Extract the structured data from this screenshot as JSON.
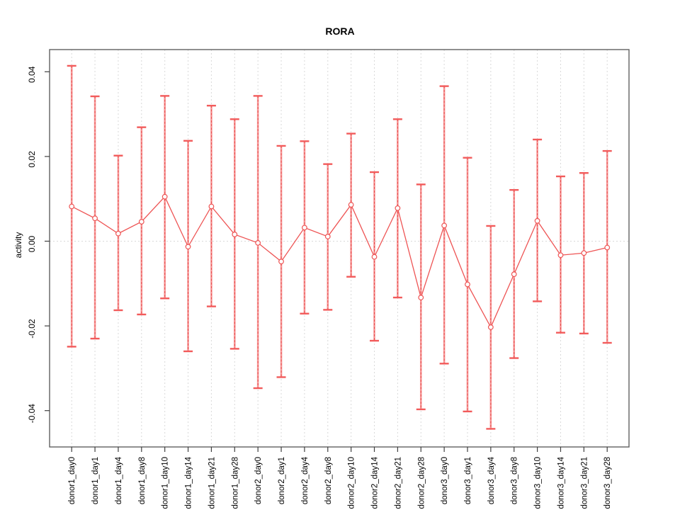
{
  "title": "RORA",
  "ylabel": "activity",
  "colors": {
    "point": "#ee5454",
    "line": "#ee5454",
    "whisker_light": "#f79a9a",
    "whisker_core": "#e85050",
    "cap": "#f25b5b",
    "grid": "#d9d9d9",
    "frame": "#606060",
    "tick": "#404040",
    "text": "#000000"
  },
  "chart_data": {
    "type": "line",
    "subtype": "points-with-error-bars",
    "title": "RORA",
    "xlabel": "",
    "ylabel": "activity",
    "legend": "none",
    "grid": "dotted vertical gridline at每 category; dotted horizontal line at y=0",
    "ylim": [
      -0.0486,
      0.0452
    ],
    "yticks": {
      "values": [
        -0.04,
        -0.02,
        0.0,
        0.02,
        0.04
      ],
      "labels": [
        "-0.04",
        "-0.02",
        "0.00",
        "0.02",
        "0.04"
      ]
    },
    "categories": [
      "donor1_day0",
      "donor1_day1",
      "donor1_day4",
      "donor1_day8",
      "donor1_day10",
      "donor1_day14",
      "donor1_day21",
      "donor1_day28",
      "donor2_day0",
      "donor2_day1",
      "donor2_day4",
      "donor2_day8",
      "donor2_day10",
      "donor2_day14",
      "donor2_day21",
      "donor2_day28",
      "donor3_day0",
      "donor3_day1",
      "donor3_day4",
      "donor3_day8",
      "donor3_day10",
      "donor3_day14",
      "donor3_day21",
      "donor3_day28"
    ],
    "series": [
      {
        "name": "activity",
        "values": [
          0.0082,
          0.0054,
          0.0018,
          0.0046,
          0.0105,
          -0.0013,
          0.0082,
          0.0016,
          -0.0004,
          -0.0048,
          0.0032,
          0.0011,
          0.0086,
          -0.0037,
          0.0078,
          -0.0133,
          0.0037,
          -0.0102,
          -0.0203,
          -0.0078,
          0.0048,
          -0.0033,
          -0.0028,
          -0.0015
        ],
        "upper": [
          0.0414,
          0.0342,
          0.0202,
          0.0269,
          0.0343,
          0.0237,
          0.032,
          0.0288,
          0.0343,
          0.0225,
          0.0236,
          0.0182,
          0.0254,
          0.0163,
          0.0288,
          0.0134,
          0.0366,
          0.0197,
          0.0036,
          0.0121,
          0.024,
          0.0153,
          0.0161,
          0.0213
        ],
        "lower": [
          -0.0249,
          -0.023,
          -0.0163,
          -0.0173,
          -0.0135,
          -0.026,
          -0.0154,
          -0.0254,
          -0.0347,
          -0.0321,
          -0.0171,
          -0.0162,
          -0.0084,
          -0.0235,
          -0.0133,
          -0.0397,
          -0.0289,
          -0.0402,
          -0.0443,
          -0.0276,
          -0.0142,
          -0.0216,
          -0.0218,
          -0.024
        ]
      }
    ]
  }
}
